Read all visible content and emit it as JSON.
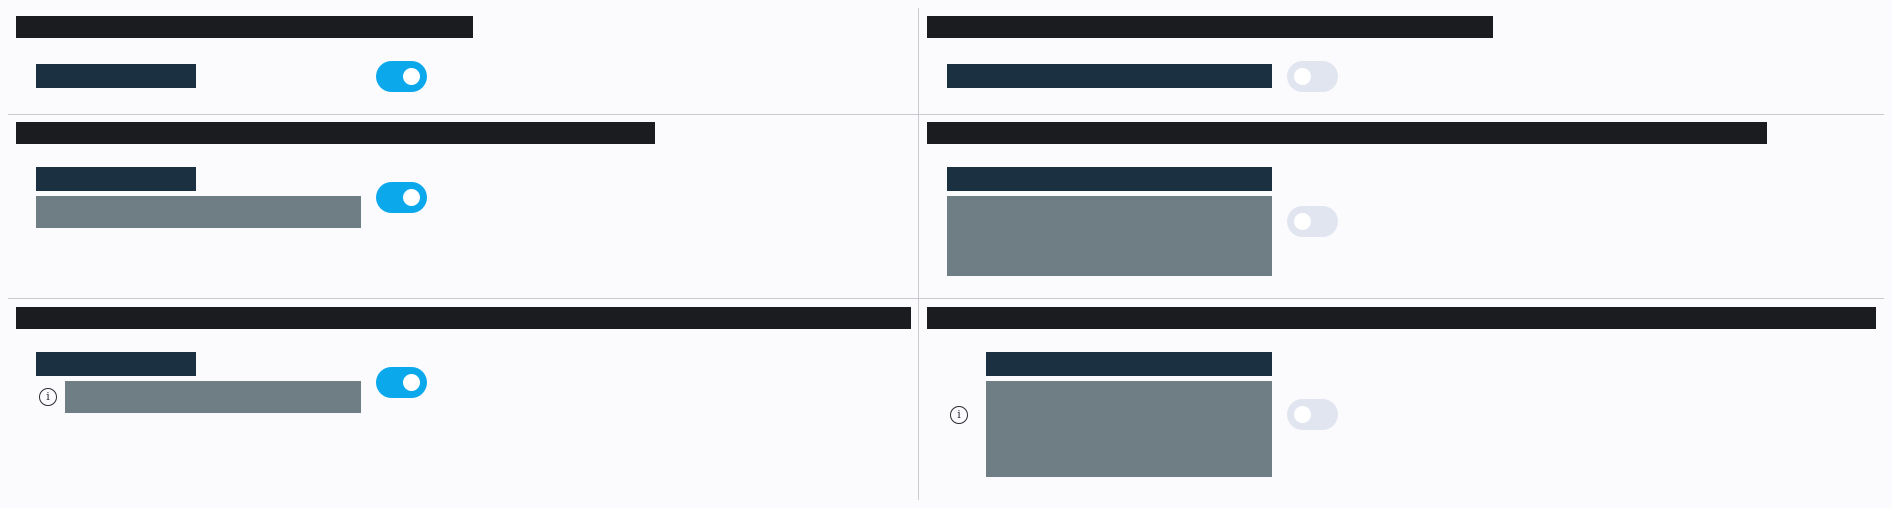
{
  "colors": {
    "heading": "#1b1c1f",
    "label": "#1b3041",
    "description": "#6f7d85",
    "toggle_on": "#0ba8ec",
    "toggle_off": "#e1e5ef",
    "divider": "#c8cacf",
    "background": "#fbfbfe"
  },
  "cells": [
    {
      "heading": "",
      "label": "",
      "toggle_state": "on"
    },
    {
      "heading": "",
      "label": "",
      "toggle_state": "off"
    },
    {
      "heading": "",
      "label": "",
      "description": "",
      "toggle_state": "on"
    },
    {
      "heading": "",
      "label": "",
      "description": "",
      "toggle_state": "off"
    },
    {
      "heading": "",
      "label": "",
      "description": "",
      "toggle_state": "on",
      "icon": "info-icon"
    },
    {
      "heading": "",
      "label": "",
      "description": "",
      "toggle_state": "off",
      "icon": "info-icon"
    }
  ]
}
